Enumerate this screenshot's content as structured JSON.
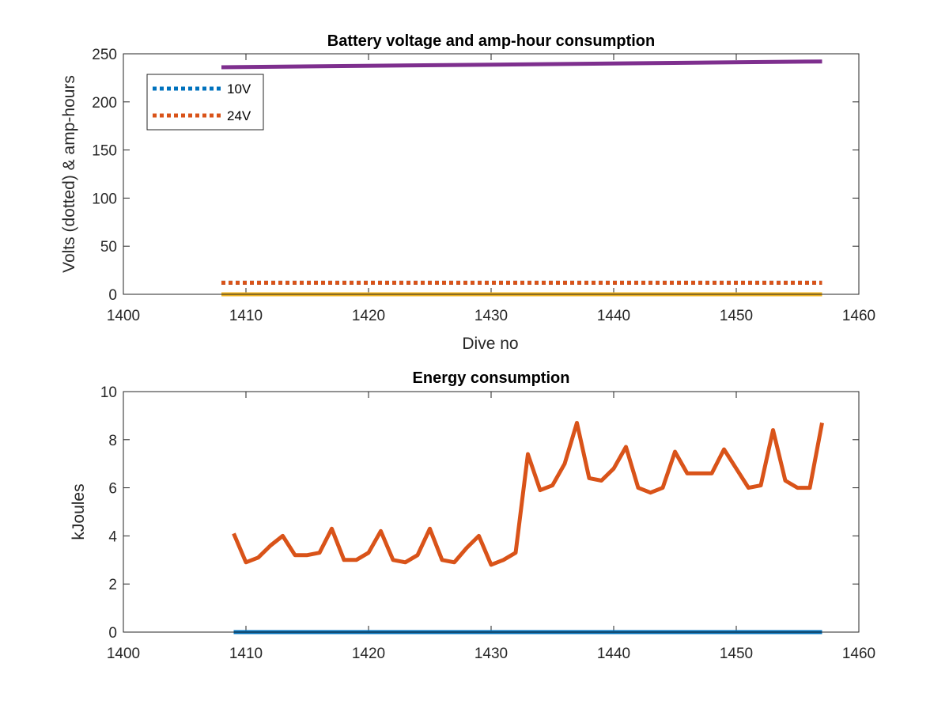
{
  "chart_data": [
    {
      "type": "line",
      "title": "Battery voltage and amp-hour consumption",
      "xlabel": "Dive no",
      "ylabel": "Volts (dotted) & amp-hours",
      "xlim": [
        1400,
        1460
      ],
      "ylim": [
        0,
        250
      ],
      "xticks": [
        1400,
        1410,
        1420,
        1430,
        1440,
        1450,
        1460
      ],
      "yticks": [
        0,
        50,
        100,
        150,
        200,
        250
      ],
      "legend_position": "top-left",
      "grid": false,
      "series": [
        {
          "name": "10V",
          "color": "#0072BD",
          "style": "dotted",
          "x": [
            1408,
            1457
          ],
          "y": [
            12,
            12
          ]
        },
        {
          "name": "24V",
          "color": "#D95319",
          "style": "dotted",
          "x": [
            1408,
            1457
          ],
          "y": [
            12,
            12
          ]
        },
        {
          "color": "#7E2F8E",
          "style": "solid",
          "x": [
            1408,
            1457
          ],
          "y": [
            236,
            242
          ]
        },
        {
          "color": "#EDB120",
          "style": "solid",
          "x": [
            1408,
            1457
          ],
          "y": [
            0,
            0
          ]
        }
      ]
    },
    {
      "type": "line",
      "title": "Energy consumption",
      "xlabel": "",
      "ylabel": "kJoules",
      "xlim": [
        1400,
        1460
      ],
      "ylim": [
        0,
        10
      ],
      "xticks": [
        1400,
        1410,
        1420,
        1430,
        1440,
        1450,
        1460
      ],
      "yticks": [
        0,
        2,
        4,
        6,
        8,
        10
      ],
      "grid": false,
      "series": [
        {
          "color": "#D95319",
          "style": "solid",
          "x": [
            1409,
            1410,
            1411,
            1412,
            1413,
            1414,
            1415,
            1416,
            1417,
            1418,
            1419,
            1420,
            1421,
            1422,
            1423,
            1424,
            1425,
            1426,
            1427,
            1428,
            1429,
            1430,
            1431,
            1432,
            1433,
            1434,
            1435,
            1436,
            1437,
            1438,
            1439,
            1440,
            1441,
            1442,
            1443,
            1444,
            1445,
            1446,
            1447,
            1448,
            1449,
            1450,
            1451,
            1452,
            1453,
            1454,
            1455,
            1456,
            1457
          ],
          "y": [
            4.1,
            2.9,
            3.1,
            3.6,
            4.0,
            3.2,
            3.2,
            3.3,
            4.3,
            3.0,
            3.0,
            3.3,
            4.2,
            3.0,
            2.9,
            3.2,
            4.3,
            3.0,
            2.9,
            3.5,
            4.0,
            2.8,
            3.0,
            3.3,
            7.4,
            5.9,
            6.1,
            7.0,
            8.7,
            6.4,
            6.3,
            6.8,
            7.7,
            6.0,
            5.8,
            6.0,
            7.5,
            6.6,
            6.6,
            6.6,
            7.6,
            6.8,
            6.0,
            6.1,
            8.4,
            6.3,
            6.0,
            6.0,
            8.7
          ]
        },
        {
          "color": "#0072BD",
          "style": "solid",
          "x": [
            1409,
            1457
          ],
          "y": [
            0,
            0
          ]
        }
      ]
    }
  ]
}
